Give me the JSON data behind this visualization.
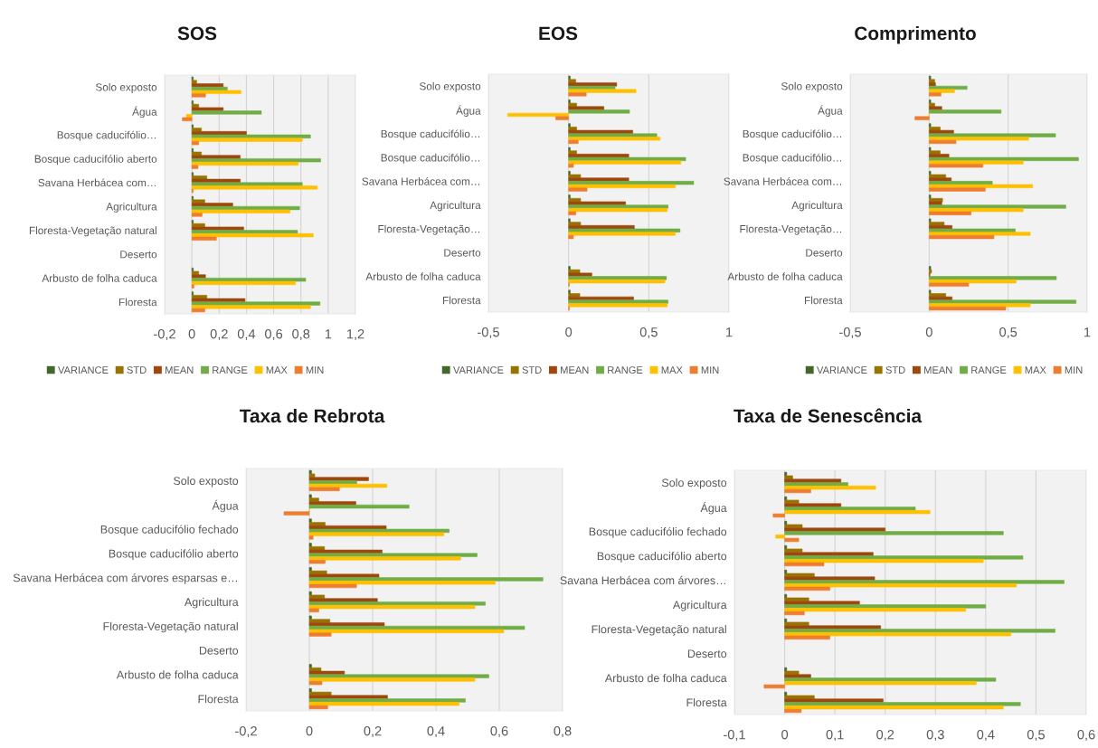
{
  "chart_data": [
    {
      "type": "bar",
      "orientation": "horizontal",
      "title": "SOS",
      "categories": [
        "Solo exposto",
        "Água",
        "Bosque caducifólio…",
        "Bosque caducifólio aberto",
        "Savana Herbácea com…",
        "Agricultura",
        "Floresta-Vegetação natural",
        "Deserto",
        "Arbusto de folha caduca",
        "Floresta"
      ],
      "series": [
        {
          "name": "VARIANCE",
          "color": "#43682b",
          "values": [
            0.01,
            0.01,
            0.01,
            0.01,
            0.01,
            0.01,
            0.01,
            null,
            0.01,
            0.01
          ]
        },
        {
          "name": "STD",
          "color": "#997300",
          "values": [
            0.035,
            0.05,
            0.07,
            0.07,
            0.11,
            0.095,
            0.095,
            null,
            0.05,
            0.11
          ]
        },
        {
          "name": "MEAN",
          "color": "#9e480e",
          "values": [
            0.23,
            0.23,
            0.4,
            0.355,
            0.355,
            0.3,
            0.38,
            null,
            0.1,
            0.39
          ]
        },
        {
          "name": "RANGE",
          "color": "#70ad47",
          "values": [
            0.26,
            0.51,
            0.87,
            0.945,
            0.81,
            0.79,
            0.775,
            null,
            0.835,
            0.94
          ]
        },
        {
          "name": "MAX",
          "color": "#ffc000",
          "values": [
            0.36,
            -0.04,
            0.81,
            0.78,
            0.92,
            0.72,
            0.89,
            null,
            0.76,
            0.87
          ]
        },
        {
          "name": "MIN",
          "color": "#ed7d31",
          "values": [
            0.1,
            -0.07,
            0.05,
            0.045,
            0.01,
            0.075,
            0.18,
            null,
            0.015,
            0.095
          ]
        }
      ],
      "xlim": [
        -0.2,
        1.2
      ],
      "xticks": [
        {
          "value": -0.2,
          "label": "-0,2"
        },
        0,
        {
          "value": 0.2,
          "label": "0,2"
        },
        {
          "value": 0.4,
          "label": "0,4"
        },
        {
          "value": 0.6,
          "label": "0,6"
        },
        {
          "value": 0.8,
          "label": "0,8"
        },
        1,
        {
          "value": 1.2,
          "label": "1,2"
        }
      ],
      "grid": "x",
      "legend": "bottom"
    },
    {
      "type": "bar",
      "orientation": "horizontal",
      "title": "EOS",
      "categories": [
        "Solo exposto",
        "Água",
        "Bosque caducifólio…",
        "Bosque caducifólio…",
        "Savana Herbácea com…",
        "Agricultura",
        "Floresta-Vegetação…",
        "Deserto",
        "Arbusto de folha caduca",
        "Floresta"
      ],
      "series": [
        {
          "name": "VARIANCE",
          "color": "#43682b",
          "values": [
            0.01,
            0.01,
            0.01,
            0.01,
            0.01,
            0.01,
            0.01,
            null,
            0.01,
            0.01
          ]
        },
        {
          "name": "STD",
          "color": "#997300",
          "values": [
            0.045,
            0.05,
            0.05,
            0.05,
            0.075,
            0.075,
            0.075,
            null,
            0.07,
            0.07
          ]
        },
        {
          "name": "MEAN",
          "color": "#9e480e",
          "values": [
            0.3,
            0.22,
            0.4,
            0.375,
            0.375,
            0.355,
            0.41,
            null,
            0.145,
            0.405
          ]
        },
        {
          "name": "RANGE",
          "color": "#70ad47",
          "values": [
            0.29,
            0.38,
            0.55,
            0.73,
            0.78,
            0.62,
            0.695,
            null,
            0.61,
            0.62
          ]
        },
        {
          "name": "MAX",
          "color": "#ffc000",
          "values": [
            0.42,
            -0.38,
            0.57,
            0.7,
            0.665,
            0.615,
            0.665,
            null,
            0.6,
            0.615
          ]
        },
        {
          "name": "MIN",
          "color": "#ed7d31",
          "values": [
            0.11,
            -0.08,
            0.06,
            0.03,
            0.115,
            0.045,
            0.03,
            null,
            0.005,
            0.005
          ]
        }
      ],
      "xlim": [
        -0.5,
        1
      ],
      "xticks": [
        {
          "value": -0.5,
          "label": "-0,5"
        },
        0,
        {
          "value": 0.5,
          "label": "0,5"
        },
        1
      ],
      "grid": "x",
      "legend": "bottom"
    },
    {
      "type": "bar",
      "orientation": "horizontal",
      "title": "Comprimento",
      "categories": [
        "Solo exposto",
        "Água",
        "Bosque caducifólio…",
        "Bosque caducifólio…",
        "Savana Herbácea com…",
        "Agricultura",
        "Floresta-Vegetação…",
        "Deserto",
        "Arbusto de folha caduca",
        "Floresta"
      ],
      "series": [
        {
          "name": "VARIANCE",
          "color": "#43682b",
          "values": [
            0.01,
            0.01,
            0.01,
            0.01,
            0.01,
            0.01,
            0.01,
            null,
            0.01,
            0.01
          ]
        },
        {
          "name": "STD",
          "color": "#997300",
          "values": [
            0.035,
            0.035,
            0.07,
            0.07,
            0.105,
            0.085,
            0.095,
            null,
            0.015,
            0.105
          ]
        },
        {
          "name": "MEAN",
          "color": "#9e480e",
          "values": [
            0.04,
            0.08,
            0.155,
            0.125,
            0.14,
            0.08,
            0.145,
            null,
            0.005,
            0.145
          ]
        },
        {
          "name": "RANGE",
          "color": "#70ad47",
          "values": [
            0.24,
            0.455,
            0.8,
            0.945,
            0.4,
            0.865,
            0.545,
            null,
            0.805,
            0.93
          ]
        },
        {
          "name": "MAX",
          "color": "#ffc000",
          "values": [
            0.16,
            0,
            0.63,
            0.595,
            0.655,
            0.595,
            0.64,
            null,
            0.55,
            0.64
          ]
        },
        {
          "name": "MIN",
          "color": "#ed7d31",
          "values": [
            0.075,
            -0.09,
            0.17,
            0.34,
            0.355,
            0.265,
            0.41,
            null,
            0.25,
            0.485
          ]
        }
      ],
      "xlim": [
        -0.5,
        1
      ],
      "xticks": [
        {
          "value": -0.5,
          "label": "-0,5"
        },
        0,
        {
          "value": 0.5,
          "label": "0,5"
        },
        1
      ],
      "grid": "x",
      "legend": "bottom"
    },
    {
      "type": "bar",
      "orientation": "horizontal",
      "title": "Taxa de Rebrota",
      "categories": [
        "Solo exposto",
        "Água",
        "Bosque caducifólio fechado",
        "Bosque caducifólio aberto",
        "Savana Herbácea com árvores esparsas e…",
        "Agricultura",
        "Floresta-Vegetação natural",
        "Deserto",
        "Arbusto de folha caduca",
        "Floresta"
      ],
      "series": [
        {
          "color": "#43682b",
          "values": [
            0.007,
            0.007,
            0.007,
            0.007,
            0.007,
            0.007,
            0.007,
            null,
            0.007,
            0.007
          ]
        },
        {
          "color": "#997300",
          "values": [
            0.017,
            0.03,
            0.05,
            0.048,
            0.055,
            0.048,
            0.065,
            null,
            0.037,
            0.069
          ]
        },
        {
          "color": "#9e480e",
          "values": [
            0.187,
            0.147,
            0.243,
            0.23,
            0.22,
            0.215,
            0.237,
            null,
            0.111,
            0.247
          ]
        },
        {
          "color": "#70ad47",
          "values": [
            0.15,
            0.315,
            0.442,
            0.53,
            0.738,
            0.556,
            0.68,
            null,
            0.567,
            0.493
          ]
        },
        {
          "color": "#ffc000",
          "values": [
            0.245,
            0,
            0.425,
            0.478,
            0.587,
            0.523,
            0.614,
            null,
            0.523,
            0.473
          ]
        },
        {
          "color": "#ed7d31",
          "values": [
            0.095,
            -0.08,
            0.012,
            0.05,
            0.149,
            0.03,
            0.069,
            null,
            0.04,
            0.058
          ]
        }
      ],
      "xlim": [
        -0.2,
        0.8
      ],
      "xticks": [
        {
          "value": -0.2,
          "label": "-0,2"
        },
        0,
        {
          "value": 0.2,
          "label": "0,2"
        },
        {
          "value": 0.4,
          "label": "0,4"
        },
        {
          "value": 0.6,
          "label": "0,6"
        },
        {
          "value": 0.8,
          "label": "0,8"
        }
      ],
      "grid": "x"
    },
    {
      "type": "bar",
      "orientation": "horizontal",
      "title": "Taxa de Senescência",
      "categories": [
        "Solo exposto",
        "Água",
        "Bosque caducifólio fechado",
        "Bosque caducifólio aberto",
        "Savana Herbácea com árvores…",
        "Agricultura",
        "Floresta-Vegetação natural",
        "Deserto",
        "Arbusto de folha caduca",
        "Floresta"
      ],
      "series": [
        {
          "color": "#43682b",
          "values": [
            0.004,
            0.004,
            0.004,
            0.004,
            0.004,
            0.004,
            0.004,
            null,
            0.004,
            0.004
          ]
        },
        {
          "color": "#997300",
          "values": [
            0.016,
            0.028,
            0.035,
            0.035,
            0.059,
            0.048,
            0.048,
            null,
            0.028,
            0.059
          ]
        },
        {
          "color": "#9e480e",
          "values": [
            0.112,
            0.112,
            0.2,
            0.176,
            0.179,
            0.149,
            0.191,
            null,
            0.052,
            0.196
          ]
        },
        {
          "color": "#70ad47",
          "values": [
            0.126,
            0.26,
            0.435,
            0.474,
            0.556,
            0.4,
            0.538,
            null,
            0.42,
            0.469
          ]
        },
        {
          "color": "#ffc000",
          "values": [
            0.181,
            0.289,
            -0.018,
            0.395,
            0.461,
            0.36,
            0.45,
            null,
            0.381,
            0.435
          ]
        },
        {
          "color": "#ed7d31",
          "values": [
            0.052,
            -0.023,
            0.028,
            0.078,
            0.09,
            0.039,
            0.09,
            null,
            -0.041,
            0.033
          ]
        }
      ],
      "xlim": [
        -0.1,
        0.6
      ],
      "xticks": [
        {
          "value": -0.1,
          "label": "-0,1"
        },
        0,
        {
          "value": 0.1,
          "label": "0,1"
        },
        {
          "value": 0.2,
          "label": "0,2"
        },
        {
          "value": 0.3,
          "label": "0,3"
        },
        {
          "value": 0.4,
          "label": "0,4"
        },
        {
          "value": 0.5,
          "label": "0,5"
        },
        {
          "value": 0.6,
          "label": "0,6"
        }
      ],
      "grid": "x"
    }
  ]
}
